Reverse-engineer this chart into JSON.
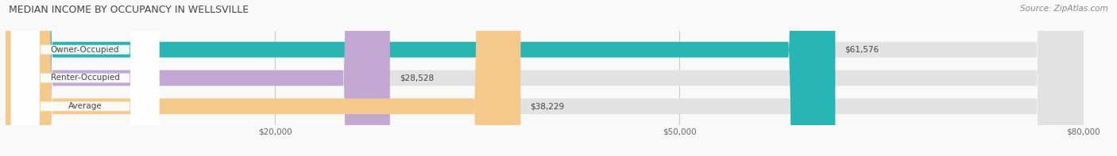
{
  "title": "MEDIAN INCOME BY OCCUPANCY IN WELLSVILLE",
  "source": "Source: ZipAtlas.com",
  "categories": [
    "Owner-Occupied",
    "Renter-Occupied",
    "Average"
  ],
  "values": [
    61576,
    28528,
    38229
  ],
  "bar_colors": [
    "#2ab5b5",
    "#c4a8d4",
    "#f5c98a"
  ],
  "background_color": "#f9f9f9",
  "bar_bg_color": "#e2e2e2",
  "label_values": [
    "$61,576",
    "$28,528",
    "$38,229"
  ],
  "xlim": [
    0,
    80000
  ],
  "xtick_positions": [
    20000,
    50000,
    80000
  ],
  "xtick_labels": [
    "$20,000",
    "$50,000",
    "$80,000"
  ],
  "bar_height": 0.55,
  "figsize": [
    14.06,
    1.97
  ],
  "dpi": 100
}
